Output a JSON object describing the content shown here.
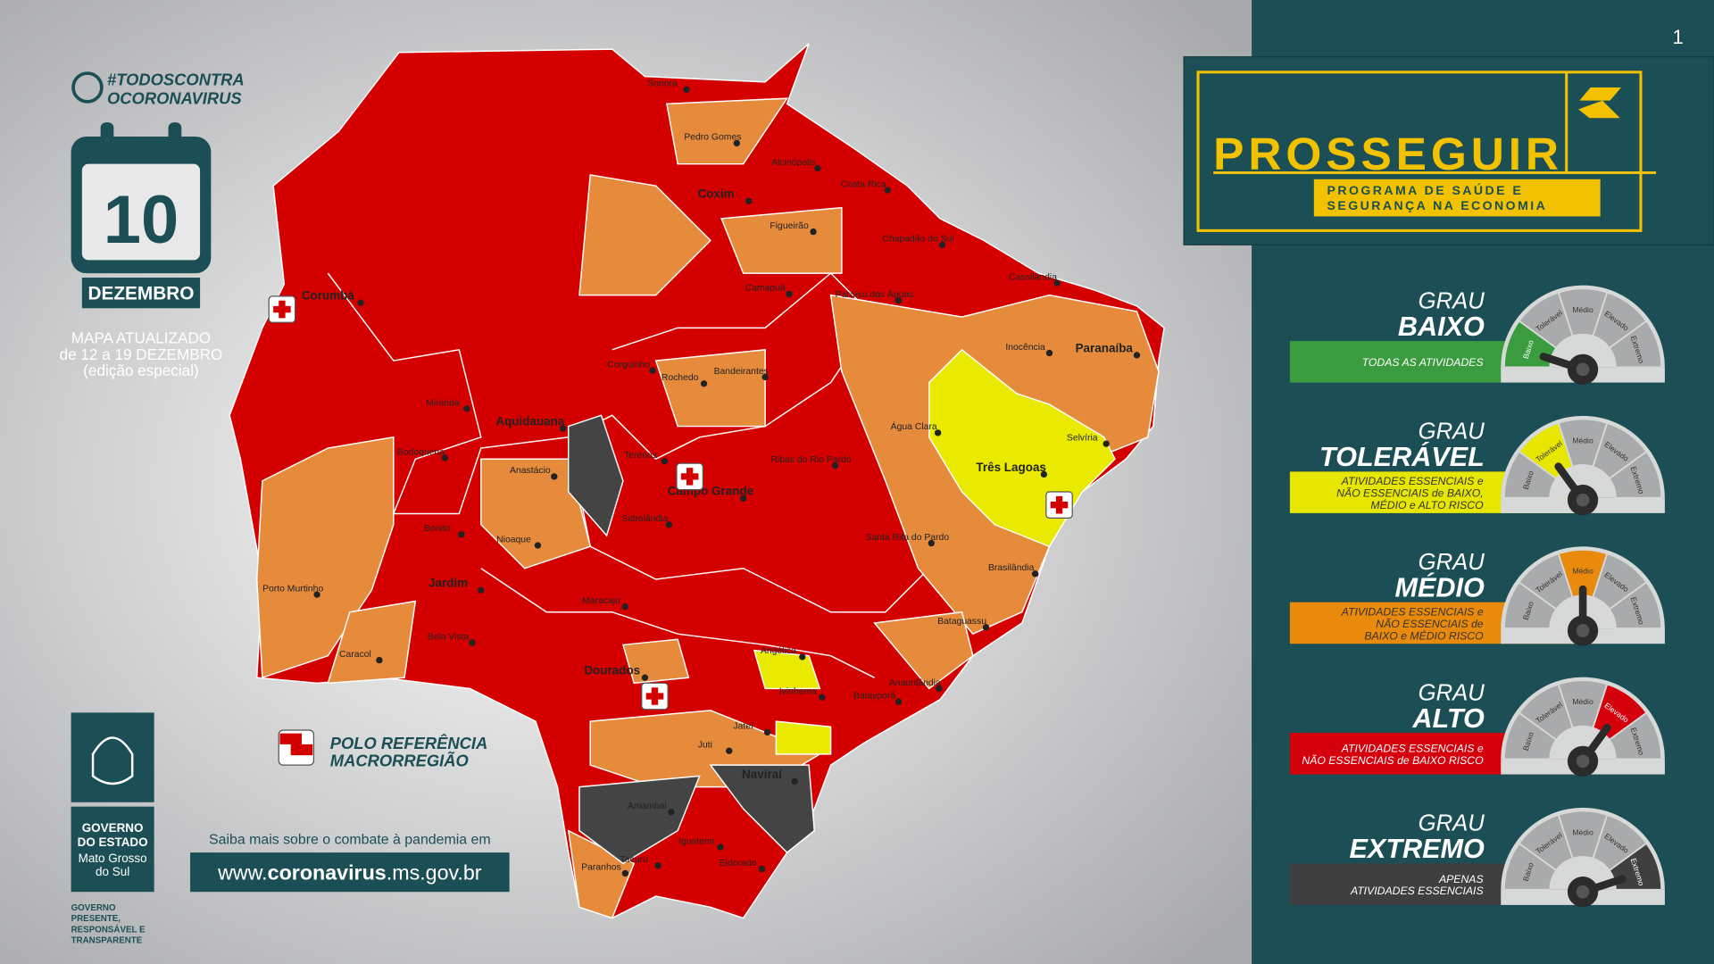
{
  "page_number": "1",
  "campaign": {
    "line1": "#TODOSCONTRA",
    "line2": "OCORONAVIRUS"
  },
  "date": {
    "day": "10",
    "month": "DEZEMBRO"
  },
  "update_note": [
    "MAPA ATUALIZADO",
    "de 12 a 19 DEZEMBRO",
    "(edição especial)"
  ],
  "legend": {
    "polo": [
      "POLO REFERÊNCIA",
      "MACRORREGIÃO"
    ]
  },
  "info": {
    "prompt": "Saiba mais sobre o combate à pandemia em",
    "url_prefix": "www.",
    "url_domain": "coronavirus",
    "url_suffix": ".ms.gov.br"
  },
  "government": {
    "title": [
      "GOVERNO",
      "DO ESTADO"
    ],
    "state": [
      "Mato Grosso",
      "do Sul"
    ],
    "slogan": [
      "GOVERNO",
      "PRESENTE,",
      "RESPONSÁVEL E",
      "TRANSPARENTE"
    ]
  },
  "program": {
    "name": "PROSSEGUIR",
    "subtitle": [
      "PROGRAMA DE SAÚDE E",
      "SEGURANÇA NA ECONOMIA"
    ]
  },
  "gauge_labels": [
    "Baixo",
    "Tolerável",
    "Médio",
    "Elevado",
    "Extremo"
  ],
  "levels": [
    {
      "prefix": "GRAU",
      "name": "BAIXO",
      "color": "#3b9c3f",
      "description": [
        "TODAS AS ATIVIDADES"
      ]
    },
    {
      "prefix": "GRAU",
      "name": "TOLERÁVEL",
      "color": "#e6e600",
      "description": [
        "ATIVIDADES ESSENCIAIS e",
        "NÃO ESSENCIAIS de BAIXO,",
        "MÉDIO e ALTO RISCO"
      ]
    },
    {
      "prefix": "GRAU",
      "name": "MÉDIO",
      "color": "#e98a0c",
      "description": [
        "ATIVIDADES ESSENCIAIS e",
        "NÃO ESSENCIAIS de",
        "BAIXO e MÉDIO RISCO"
      ]
    },
    {
      "prefix": "GRAU",
      "name": "ALTO",
      "color": "#d4000b",
      "description": [
        "ATIVIDADES ESSENCIAIS e",
        "NÃO ESSENCIAIS de BAIXO RISCO"
      ]
    },
    {
      "prefix": "GRAU",
      "name": "EXTREMO",
      "color": "#3f3f40",
      "description": [
        "APENAS",
        "ATIVIDADES ESSENCIAIS"
      ]
    }
  ],
  "cities": [
    "Corumbá",
    "Coxim",
    "Pedro Gomes",
    "Alcinópolis",
    "Figueirão",
    "Paraíso das Águas",
    "Inocência",
    "Paranaíba",
    "Selvíria",
    "Água Clara",
    "Três Lagoas",
    "Brasilândia",
    "Bataguassu",
    "Campo Grande",
    "Rochedo",
    "Bandeirantes",
    "Corguinho",
    "Aquidauana",
    "Anastácio",
    "Bodoquena",
    "Miranda",
    "Nioaque",
    "Bonito",
    "Porto Murtinho",
    "Caracol",
    "Jardim",
    "Bela Vista",
    "Maracaju",
    "Dourados",
    "Angélica",
    "Juti",
    "Naviraí",
    "Amambai",
    "Iguatemi",
    "Eldorado",
    "Tacuru",
    "Paranhos",
    "Jateí",
    "Ivinhema",
    "Costa Rica",
    "Chapadão do Sul",
    "Cassilândia",
    "Camapuã",
    "Ribas do Rio Pardo",
    "Santa Rita do Pardo",
    "Sidrolândia",
    "Terenos",
    "Sonora",
    "Anaurilândia",
    "Batayporã"
  ]
}
